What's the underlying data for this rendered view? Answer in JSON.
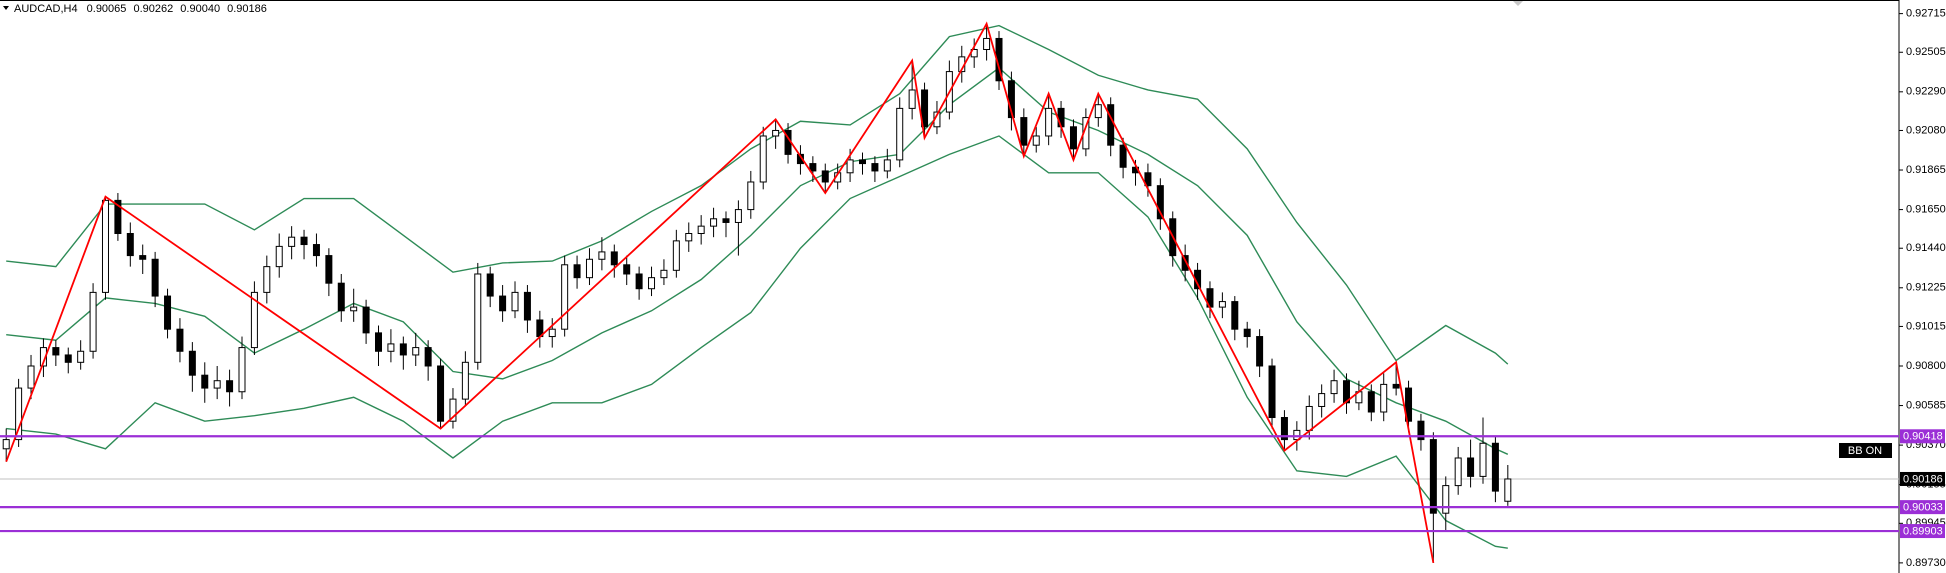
{
  "chart_data": {
    "type": "candlestick",
    "header": {
      "symbol": "AUDCAD,H4",
      "ohlc_labels": [
        "0.90065",
        "0.90262",
        "0.90040",
        "0.90186"
      ]
    },
    "indicator_label": "BB ON",
    "ylim": [
      0.89675,
      0.92789
    ],
    "yticks": [
      0.92715,
      0.92505,
      {
        "value": 0.9229,
        "label": "0.92290"
      },
      {
        "value": 0.9208,
        "label": "0.92080"
      },
      0.91865,
      {
        "value": 0.9165,
        "label": "0.91650"
      },
      {
        "value": 0.9144,
        "label": "0.91440"
      },
      0.91225,
      0.91015,
      {
        "value": 0.908,
        "label": "0.90800"
      },
      0.90585,
      {
        "value": 0.9037,
        "label": "0.90370"
      },
      0.90155,
      0.89945,
      {
        "value": 0.8973,
        "label": "0.89730"
      }
    ],
    "candles": [
      [
        0.9035,
        0.9046,
        0.9028,
        0.904
      ],
      [
        0.904,
        0.9073,
        0.9036,
        0.9068
      ],
      [
        0.9068,
        0.9086,
        0.9062,
        0.908
      ],
      [
        0.908,
        0.9095,
        0.9074,
        0.909
      ],
      [
        0.909,
        0.9094,
        0.908,
        0.9086
      ],
      [
        0.9086,
        0.909,
        0.9076,
        0.9082
      ],
      [
        0.9082,
        0.9094,
        0.9078,
        0.9088
      ],
      [
        0.9088,
        0.9125,
        0.9084,
        0.912
      ],
      [
        0.912,
        0.9172,
        0.9116,
        0.917
      ],
      [
        0.917,
        0.9174,
        0.9148,
        0.9152
      ],
      [
        0.9152,
        0.9158,
        0.9134,
        0.914
      ],
      [
        0.914,
        0.9146,
        0.913,
        0.9138
      ],
      [
        0.9138,
        0.9142,
        0.9112,
        0.9118
      ],
      [
        0.9118,
        0.9122,
        0.9095,
        0.91
      ],
      [
        0.91,
        0.9106,
        0.9082,
        0.9088
      ],
      [
        0.9088,
        0.9093,
        0.9066,
        0.9075
      ],
      [
        0.9075,
        0.9082,
        0.906,
        0.9068
      ],
      [
        0.9068,
        0.908,
        0.9062,
        0.9072
      ],
      [
        0.9072,
        0.9078,
        0.9058,
        0.9066
      ],
      [
        0.9066,
        0.9096,
        0.9062,
        0.909
      ],
      [
        0.909,
        0.9126,
        0.9086,
        0.912
      ],
      [
        0.912,
        0.914,
        0.9114,
        0.9134
      ],
      [
        0.9134,
        0.9152,
        0.9128,
        0.9145
      ],
      [
        0.9145,
        0.9156,
        0.9138,
        0.915
      ],
      [
        0.915,
        0.9154,
        0.9138,
        0.9146
      ],
      [
        0.9146,
        0.9152,
        0.9134,
        0.914
      ],
      [
        0.914,
        0.9144,
        0.9118,
        0.9125
      ],
      [
        0.9125,
        0.913,
        0.9104,
        0.911
      ],
      [
        0.911,
        0.9122,
        0.9104,
        0.9112
      ],
      [
        0.9112,
        0.9116,
        0.9092,
        0.9098
      ],
      [
        0.9098,
        0.9102,
        0.908,
        0.9088
      ],
      [
        0.9088,
        0.91,
        0.9082,
        0.9092
      ],
      [
        0.9092,
        0.9096,
        0.9078,
        0.9086
      ],
      [
        0.9086,
        0.9098,
        0.908,
        0.909
      ],
      [
        0.909,
        0.9094,
        0.9072,
        0.908
      ],
      [
        0.908,
        0.9084,
        0.9046,
        0.905
      ],
      [
        0.905,
        0.9068,
        0.9046,
        0.9062
      ],
      [
        0.9062,
        0.9088,
        0.9058,
        0.9082
      ],
      [
        0.9082,
        0.9136,
        0.9078,
        0.913
      ],
      [
        0.913,
        0.9134,
        0.9112,
        0.9118
      ],
      [
        0.9118,
        0.9124,
        0.9104,
        0.911
      ],
      [
        0.911,
        0.9126,
        0.9106,
        0.912
      ],
      [
        0.912,
        0.9124,
        0.9098,
        0.9105
      ],
      [
        0.9105,
        0.911,
        0.909,
        0.9096
      ],
      [
        0.9096,
        0.9106,
        0.909,
        0.91
      ],
      [
        0.91,
        0.914,
        0.9096,
        0.9135
      ],
      [
        0.9135,
        0.914,
        0.9122,
        0.9128
      ],
      [
        0.9128,
        0.9144,
        0.9124,
        0.9138
      ],
      [
        0.9138,
        0.915,
        0.9132,
        0.9142
      ],
      [
        0.9142,
        0.9146,
        0.9128,
        0.9135
      ],
      [
        0.9135,
        0.914,
        0.9124,
        0.913
      ],
      [
        0.913,
        0.9134,
        0.9116,
        0.9122
      ],
      [
        0.9122,
        0.9134,
        0.9118,
        0.9128
      ],
      [
        0.9128,
        0.9138,
        0.9124,
        0.9132
      ],
      [
        0.9132,
        0.9154,
        0.9128,
        0.9148
      ],
      [
        0.9148,
        0.9158,
        0.9142,
        0.9152
      ],
      [
        0.9152,
        0.9162,
        0.9146,
        0.9156
      ],
      [
        0.9156,
        0.9166,
        0.915,
        0.916
      ],
      [
        0.916,
        0.9164,
        0.915,
        0.9158
      ],
      [
        0.9158,
        0.917,
        0.914,
        0.9165
      ],
      [
        0.9165,
        0.9186,
        0.916,
        0.918
      ],
      [
        0.918,
        0.921,
        0.9176,
        0.9205
      ],
      [
        0.9205,
        0.9214,
        0.9198,
        0.9208
      ],
      [
        0.9208,
        0.9212,
        0.919,
        0.9195
      ],
      [
        0.9195,
        0.92,
        0.9184,
        0.919
      ],
      [
        0.919,
        0.9194,
        0.918,
        0.9186
      ],
      [
        0.9186,
        0.919,
        0.9174,
        0.918
      ],
      [
        0.918,
        0.919,
        0.9176,
        0.9185
      ],
      [
        0.9185,
        0.9198,
        0.918,
        0.9192
      ],
      [
        0.9192,
        0.9196,
        0.9184,
        0.919
      ],
      [
        0.919,
        0.9194,
        0.918,
        0.9186
      ],
      [
        0.9186,
        0.9198,
        0.9182,
        0.9192
      ],
      [
        0.9192,
        0.9226,
        0.9188,
        0.922
      ],
      [
        0.922,
        0.9246,
        0.9214,
        0.923
      ],
      [
        0.923,
        0.9234,
        0.9204,
        0.921
      ],
      [
        0.921,
        0.9224,
        0.9206,
        0.9218
      ],
      [
        0.9218,
        0.9246,
        0.9214,
        0.924
      ],
      [
        0.924,
        0.9254,
        0.9234,
        0.9248
      ],
      [
        0.9248,
        0.9258,
        0.9242,
        0.9252
      ],
      [
        0.9252,
        0.9266,
        0.9246,
        0.9258
      ],
      [
        0.9258,
        0.9262,
        0.923,
        0.9235
      ],
      [
        0.9235,
        0.924,
        0.9208,
        0.9215
      ],
      [
        0.9215,
        0.922,
        0.9194,
        0.92
      ],
      [
        0.92,
        0.921,
        0.9196,
        0.9205
      ],
      [
        0.9205,
        0.9228,
        0.92,
        0.922
      ],
      [
        0.922,
        0.9224,
        0.9204,
        0.921
      ],
      [
        0.921,
        0.9214,
        0.9192,
        0.9198
      ],
      [
        0.9198,
        0.922,
        0.9194,
        0.9215
      ],
      [
        0.9215,
        0.9228,
        0.921,
        0.9222
      ],
      [
        0.9222,
        0.9226,
        0.9194,
        0.92
      ],
      [
        0.92,
        0.9204,
        0.9182,
        0.9188
      ],
      [
        0.9188,
        0.9192,
        0.9178,
        0.9185
      ],
      [
        0.9185,
        0.919,
        0.9172,
        0.9178
      ],
      [
        0.9178,
        0.9182,
        0.9154,
        0.916
      ],
      [
        0.916,
        0.9164,
        0.9134,
        0.914
      ],
      [
        0.914,
        0.9146,
        0.9126,
        0.9132
      ],
      [
        0.9132,
        0.9136,
        0.9116,
        0.9122
      ],
      [
        0.9122,
        0.9126,
        0.9106,
        0.9112
      ],
      [
        0.9112,
        0.912,
        0.9106,
        0.9115
      ],
      [
        0.9115,
        0.9118,
        0.9094,
        0.91
      ],
      [
        0.91,
        0.9104,
        0.909,
        0.9096
      ],
      [
        0.9096,
        0.91,
        0.9074,
        0.908
      ],
      [
        0.908,
        0.9084,
        0.9046,
        0.9052
      ],
      [
        0.9052,
        0.9056,
        0.9034,
        0.904
      ],
      [
        0.904,
        0.905,
        0.9034,
        0.9045
      ],
      [
        0.9045,
        0.9064,
        0.904,
        0.9058
      ],
      [
        0.9058,
        0.907,
        0.9052,
        0.9065
      ],
      [
        0.9065,
        0.9078,
        0.906,
        0.9072
      ],
      [
        0.9072,
        0.9076,
        0.9054,
        0.906
      ],
      [
        0.906,
        0.9072,
        0.9056,
        0.9066
      ],
      [
        0.9066,
        0.907,
        0.905,
        0.9055
      ],
      [
        0.9055,
        0.9076,
        0.905,
        0.907
      ],
      [
        0.907,
        0.9082,
        0.9064,
        0.9068
      ],
      [
        0.9068,
        0.9072,
        0.9044,
        0.905
      ],
      [
        0.905,
        0.9054,
        0.9034,
        0.904
      ],
      [
        0.904,
        0.9044,
        0.8973,
        0.9
      ],
      [
        0.9,
        0.902,
        0.899,
        0.9015
      ],
      [
        0.9015,
        0.9036,
        0.901,
        0.903
      ],
      [
        0.903,
        0.904,
        0.9014,
        0.902
      ],
      [
        0.902,
        0.9052,
        0.9016,
        0.9038
      ],
      [
        0.9038,
        0.9042,
        0.9006,
        0.9012
      ],
      [
        0.90065,
        0.90262,
        0.9004,
        0.90186
      ]
    ],
    "bands": {
      "color": "#2e8b57",
      "x": [
        0,
        4,
        8,
        12,
        16,
        20,
        24,
        28,
        32,
        36,
        40,
        44,
        48,
        52,
        56,
        60,
        64,
        68,
        72,
        76,
        80,
        84,
        88,
        92,
        96,
        100,
        104,
        108,
        112,
        116,
        120,
        121
      ],
      "upper": [
        0.9137,
        0.9134,
        0.9168,
        0.9168,
        0.9168,
        0.9154,
        0.9171,
        0.9171,
        0.9151,
        0.9131,
        0.9136,
        0.9137,
        0.9148,
        0.9164,
        0.9178,
        0.9198,
        0.9213,
        0.9211,
        0.9228,
        0.9259,
        0.9265,
        0.9252,
        0.9238,
        0.923,
        0.9225,
        0.9198,
        0.9158,
        0.9124,
        0.9083,
        0.9102,
        0.9087,
        0.9081
      ],
      "middle": [
        0.9097,
        0.9094,
        0.9117,
        0.9114,
        0.9107,
        0.9087,
        0.91,
        0.9114,
        0.9104,
        0.9077,
        0.9073,
        0.9083,
        0.9098,
        0.911,
        0.9127,
        0.9151,
        0.9178,
        0.9191,
        0.9195,
        0.9222,
        0.9242,
        0.9218,
        0.9208,
        0.9195,
        0.9178,
        0.9151,
        0.9104,
        0.9073,
        0.906,
        0.905,
        0.9035,
        0.9032
      ],
      "lower": [
        0.9046,
        0.9043,
        0.9035,
        0.906,
        0.905,
        0.9053,
        0.9057,
        0.9063,
        0.905,
        0.903,
        0.905,
        0.906,
        0.906,
        0.907,
        0.909,
        0.9109,
        0.9144,
        0.9171,
        0.9183,
        0.9195,
        0.9205,
        0.9185,
        0.9185,
        0.9161,
        0.9117,
        0.9063,
        0.9023,
        0.902,
        0.9031,
        0.8996,
        0.8982,
        0.8981
      ]
    },
    "zigzag": {
      "color": "#ff0000",
      "x": [
        0,
        8,
        35,
        62,
        66,
        73,
        74,
        79,
        82,
        84,
        86,
        88,
        103,
        112,
        115
      ],
      "values": [
        0.9028,
        0.9172,
        0.9046,
        0.9214,
        0.9174,
        0.9246,
        0.9204,
        0.9266,
        0.9194,
        0.9228,
        0.9192,
        0.9228,
        0.9034,
        0.9082,
        0.8973
      ]
    },
    "levels": [
      {
        "value": 0.90418,
        "color": "#9b2fd6"
      },
      {
        "value": 0.90033,
        "color": "#9b2fd6"
      },
      {
        "value": 0.89903,
        "color": "#9b2fd6"
      }
    ],
    "current_price": {
      "value": 0.90186,
      "color": "#c0c0c0"
    }
  }
}
